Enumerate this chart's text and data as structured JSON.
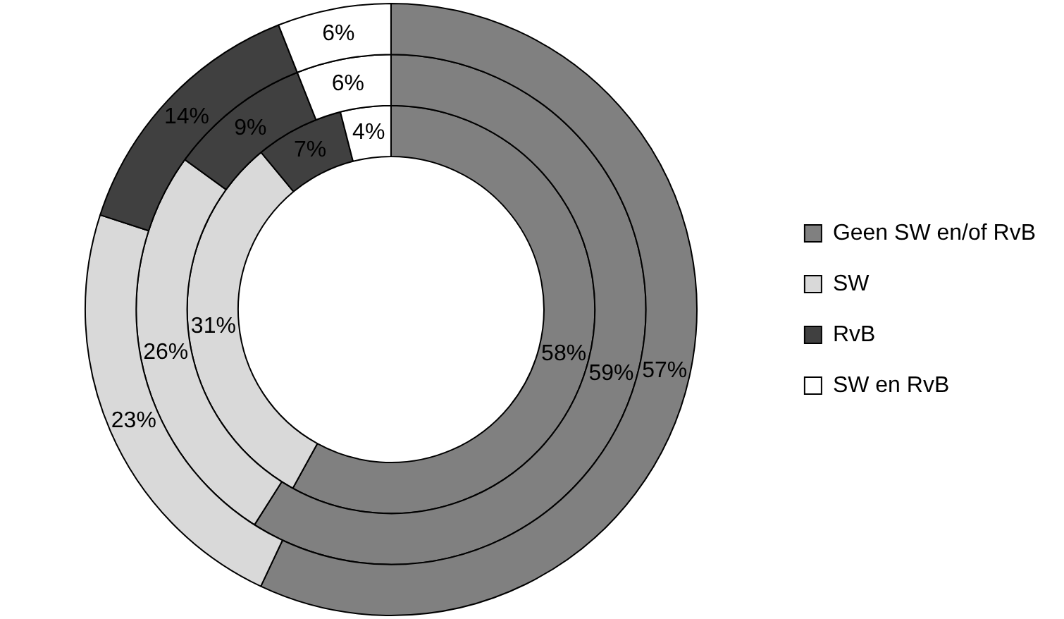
{
  "chart_data": {
    "type": "donut",
    "categories": [
      "Geen SW en/of RvB",
      "SW",
      "RvB",
      "SW en RvB"
    ],
    "colors": [
      "#808080",
      "#d9d9d9",
      "#404040",
      "#ffffff"
    ],
    "legend": "right",
    "series": [
      {
        "values": [
          57,
          23,
          14,
          6
        ],
        "value_labels": [
          "57%",
          "23%",
          "14%",
          "6%"
        ]
      },
      {
        "values": [
          59,
          26,
          9,
          6
        ],
        "value_labels": [
          "59%",
          "26%",
          "9%",
          "6%"
        ]
      },
      {
        "values": [
          58,
          31,
          7,
          4
        ],
        "value_labels": [
          "58%",
          "31%",
          "7%",
          "4%"
        ]
      }
    ]
  }
}
